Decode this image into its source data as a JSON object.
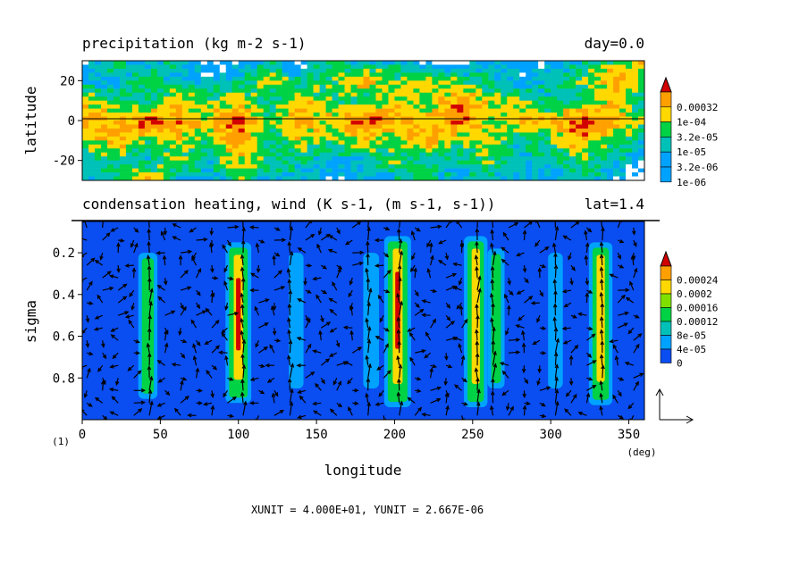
{
  "figure": {
    "footnote": "XUNIT = 4.000E+01, YUNIT = 2.667E-06",
    "frame_label": "(1)",
    "x_axis_label": "longitude",
    "x_unit_label": "(deg)"
  },
  "colors": {
    "levels": [
      "#0a4df0",
      "#00a2ff",
      "#00c1b8",
      "#00d245",
      "#7fe000",
      "#ffd800",
      "#ffa000",
      "#d20000"
    ],
    "axis": "#000000"
  },
  "chart_data": [
    {
      "type": "heatmap",
      "title": "precipitation (kg m-2 s-1)",
      "annotation": "day=0.0",
      "xlim": [
        0,
        360
      ],
      "ylim": [
        -30,
        30
      ],
      "xticks": [
        "0",
        "50",
        "100",
        "150",
        "200",
        "250",
        "300",
        "350"
      ],
      "yticks": [
        {
          "value": 20,
          "label": "20"
        },
        {
          "value": 0,
          "label": "0"
        },
        {
          "value": -20,
          "label": "-20"
        }
      ],
      "ylabel": "latitude",
      "colorbar": [
        "0.00032",
        "1e-04",
        "3.2e-05",
        "1e-05",
        "3.2e-06",
        "1e-06"
      ],
      "grid": {
        "x": [
          0,
          20,
          40,
          60,
          80,
          100,
          120,
          140,
          160,
          180,
          200,
          220,
          240,
          260,
          280,
          300,
          320,
          340,
          360
        ],
        "y": [
          30,
          20,
          10,
          0,
          -10,
          -20,
          -30
        ],
        "values": [
          [
            1,
            3,
            1,
            2,
            0,
            1,
            2,
            0,
            3,
            1,
            2,
            0,
            0,
            2,
            1,
            1,
            2,
            3,
            4
          ],
          [
            2,
            1,
            3,
            2,
            1,
            2,
            4,
            2,
            3,
            5,
            3,
            4,
            3,
            2,
            1,
            2,
            3,
            5,
            3
          ],
          [
            4,
            3,
            2,
            4,
            3,
            4,
            2,
            4,
            3,
            2,
            4,
            3,
            5,
            4,
            3,
            2,
            3,
            4,
            2
          ],
          [
            5,
            4,
            6,
            5,
            4,
            6,
            3,
            5,
            4,
            6,
            5,
            4,
            6,
            3,
            5,
            4,
            6,
            5,
            3
          ],
          [
            3,
            5,
            3,
            4,
            3,
            5,
            2,
            4,
            3,
            4,
            3,
            5,
            3,
            4,
            2,
            3,
            5,
            3,
            2
          ],
          [
            2,
            3,
            2,
            3,
            2,
            4,
            3,
            2,
            1,
            2,
            3,
            2,
            2,
            3,
            2,
            2,
            3,
            2,
            1
          ],
          [
            1,
            2,
            5,
            2,
            1,
            3,
            1,
            2,
            1,
            1,
            2,
            3,
            1,
            2,
            1,
            1,
            2,
            1,
            0
          ]
        ]
      }
    },
    {
      "type": "heatmap",
      "title": "condensation heating, wind (K s-1, (m s-1, s-1))",
      "annotation": "lat=1.4",
      "xlim": [
        0,
        360
      ],
      "ylim": [
        1.0,
        0.05
      ],
      "xticks": [
        "0",
        "50",
        "100",
        "150",
        "200",
        "250",
        "300",
        "350"
      ],
      "yticks": [
        {
          "value": 0.2,
          "label": "0.2"
        },
        {
          "value": 0.4,
          "label": "0.4"
        },
        {
          "value": 0.6,
          "label": "0.6"
        },
        {
          "value": 0.8,
          "label": "0.8"
        }
      ],
      "ylabel": "sigma",
      "colorbar": [
        "0.00024",
        "0.0002",
        "0.00016",
        "0.00012",
        "8e-05",
        "4e-05",
        "0"
      ],
      "heating_columns": [
        {
          "lon": 42,
          "top": 0.2,
          "bottom": 0.9,
          "peak": 0.00012
        },
        {
          "lon": 100,
          "top": 0.15,
          "bottom": 0.92,
          "peak": 0.00024
        },
        {
          "lon": 137,
          "top": 0.2,
          "bottom": 0.85,
          "peak": 4e-05
        },
        {
          "lon": 185,
          "top": 0.2,
          "bottom": 0.85,
          "peak": 6e-05
        },
        {
          "lon": 202,
          "top": 0.12,
          "bottom": 0.94,
          "peak": 0.00026
        },
        {
          "lon": 252,
          "top": 0.12,
          "bottom": 0.94,
          "peak": 0.0002
        },
        {
          "lon": 265,
          "top": 0.18,
          "bottom": 0.85,
          "peak": 8e-05
        },
        {
          "lon": 303,
          "top": 0.2,
          "bottom": 0.85,
          "peak": 4e-05
        },
        {
          "lon": 332,
          "top": 0.15,
          "bottom": 0.93,
          "peak": 0.0002
        }
      ],
      "wind_vector_grid": {
        "lon_step": 10,
        "sigma_levels": [
          0.08,
          0.14,
          0.2,
          0.26,
          0.32,
          0.38,
          0.44,
          0.5,
          0.56,
          0.62,
          0.68,
          0.74,
          0.8,
          0.86,
          0.92,
          0.98
        ]
      },
      "reference_vector": {
        "x": "XUNIT = 4.000E+01",
        "y": "YUNIT = 2.667E-06"
      }
    }
  ]
}
